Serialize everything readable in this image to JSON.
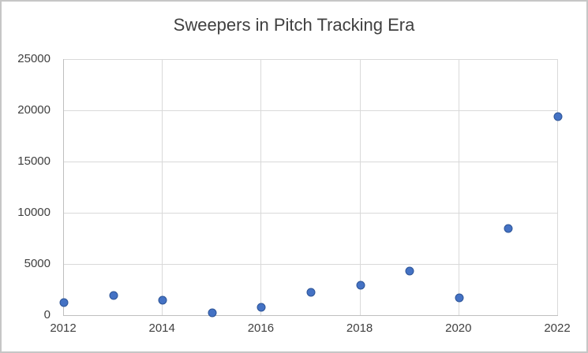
{
  "chart_data": {
    "type": "scatter",
    "title": "Sweepers in Pitch Tracking Era",
    "xlabel": "",
    "ylabel": "",
    "x": [
      2012,
      2013,
      2014,
      2015,
      2016,
      2017,
      2018,
      2019,
      2020,
      2021,
      2022
    ],
    "y": [
      1200,
      1900,
      1500,
      250,
      800,
      2250,
      2900,
      4300,
      1700,
      8500,
      19400
    ],
    "xlim": [
      2012,
      2022
    ],
    "ylim": [
      0,
      25000
    ],
    "x_tick_values": [
      2012,
      2014,
      2016,
      2018,
      2020,
      2022
    ],
    "x_tick_labels": [
      "2012",
      "2014",
      "2016",
      "2018",
      "2020",
      "2022"
    ],
    "y_tick_values": [
      0,
      5000,
      10000,
      15000,
      20000,
      25000
    ],
    "y_tick_labels": [
      "0",
      "5000",
      "10000",
      "15000",
      "20000",
      "25000"
    ],
    "grid": true,
    "legend": false,
    "marker_color": "#4472C4",
    "marker_border_color": "#2E5597",
    "gridline_color": "#D9D9D9",
    "axis_line_color": "#BFBFBF",
    "text_color": "#404040",
    "frame_border_color": "#C6C6C6"
  }
}
